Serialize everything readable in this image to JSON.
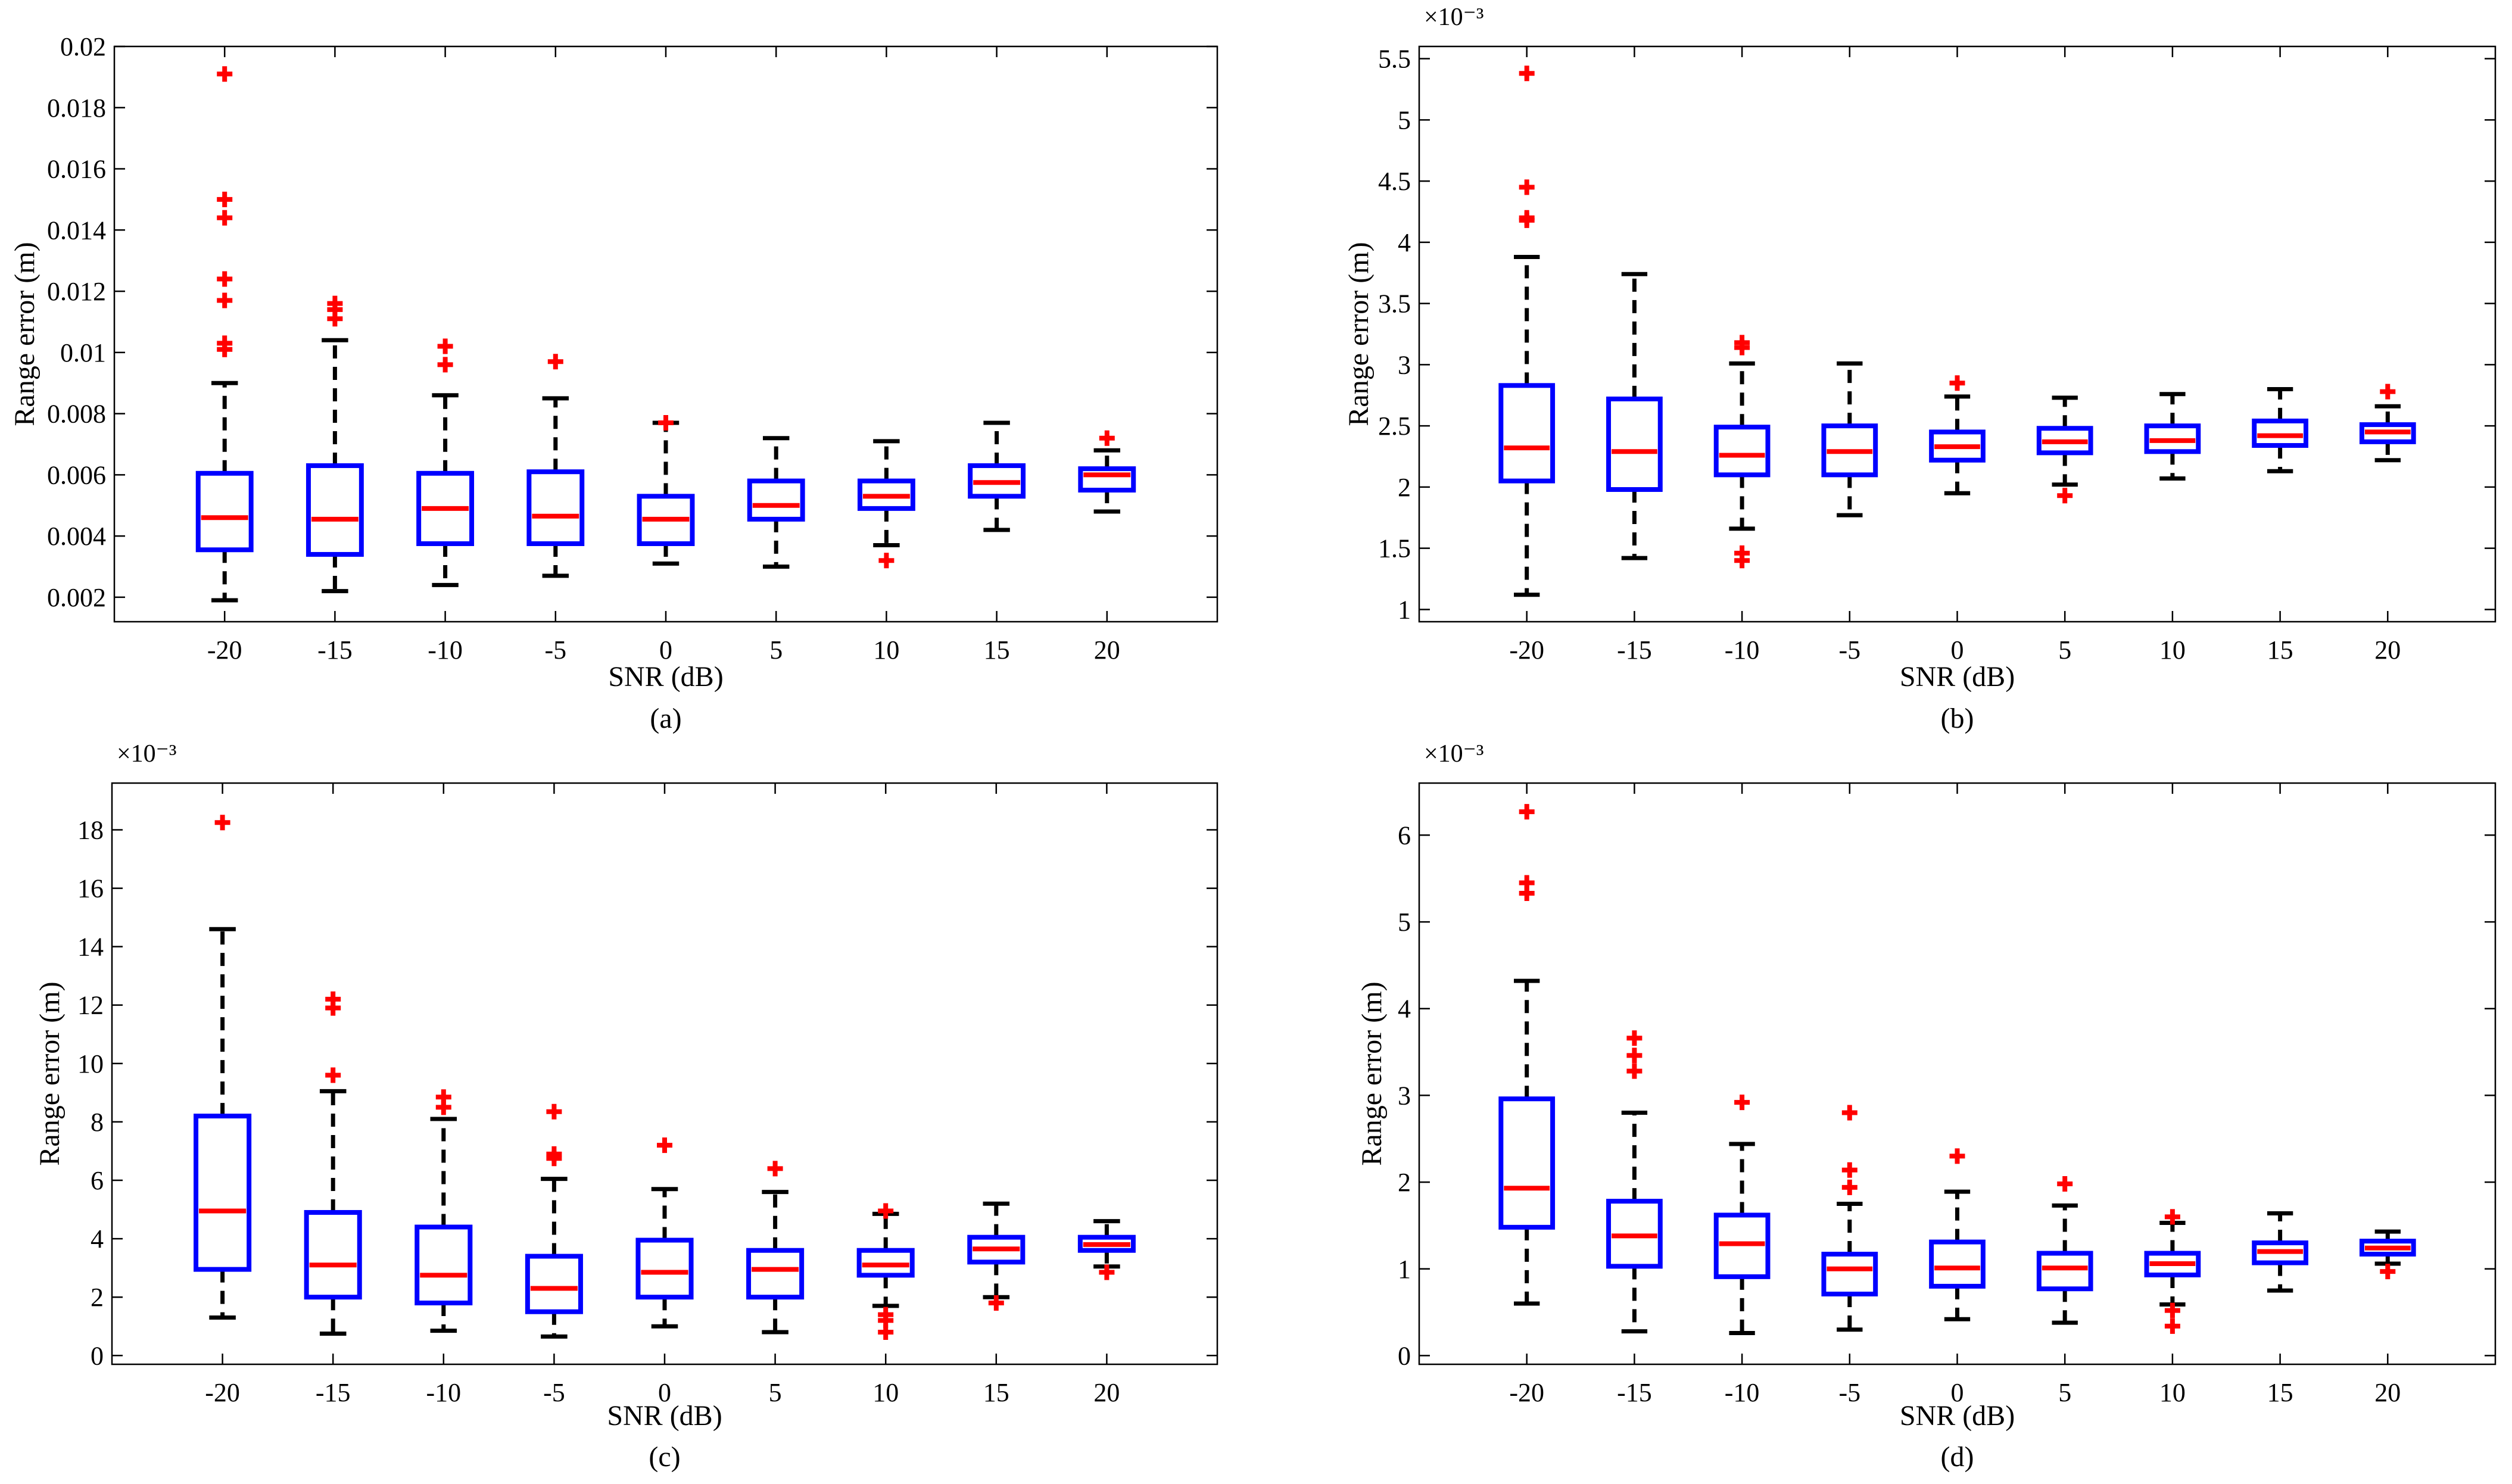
{
  "figure": {
    "colors": {
      "box": "#0000ff",
      "median": "#ff0000",
      "outlier": "#ff0000",
      "whisker": "#000000",
      "axis": "#000000"
    }
  },
  "chart_data": [
    {
      "type": "boxplot",
      "panel": "(a)",
      "xlabel": "SNR (dB)",
      "ylabel": "Range error (m)",
      "exponent": "",
      "categories": [
        "-20",
        "-15",
        "-10",
        "-5",
        "0",
        "5",
        "10",
        "15",
        "20"
      ],
      "ylim": [
        0.0012,
        0.02
      ],
      "yticks": [
        0.002,
        0.004,
        0.006,
        0.008,
        0.01,
        0.012,
        0.014,
        0.016,
        0.018,
        0.02
      ],
      "ytick_labels": [
        "0.002",
        "0.004",
        "0.006",
        "0.008",
        "0.01",
        "0.012",
        "0.014",
        "0.016",
        "0.018",
        "0.02"
      ],
      "boxes": [
        {
          "whisker_low": 0.0019,
          "q1": 0.00355,
          "median": 0.0046,
          "q3": 0.00605,
          "whisker_high": 0.009,
          "outliers": [
            0.0191,
            0.015,
            0.0144,
            0.0124,
            0.0117,
            0.0103,
            0.0101
          ]
        },
        {
          "whisker_low": 0.0022,
          "q1": 0.0034,
          "median": 0.00455,
          "q3": 0.0063,
          "whisker_high": 0.0104,
          "outliers": [
            0.0116,
            0.0114,
            0.0111
          ]
        },
        {
          "whisker_low": 0.0024,
          "q1": 0.00375,
          "median": 0.0049,
          "q3": 0.00605,
          "whisker_high": 0.0086,
          "outliers": [
            0.0102,
            0.0096
          ]
        },
        {
          "whisker_low": 0.0027,
          "q1": 0.00375,
          "median": 0.00465,
          "q3": 0.0061,
          "whisker_high": 0.0085,
          "outliers": [
            0.0097
          ]
        },
        {
          "whisker_low": 0.0031,
          "q1": 0.00375,
          "median": 0.00455,
          "q3": 0.0053,
          "whisker_high": 0.0077,
          "outliers": [
            0.0077
          ]
        },
        {
          "whisker_low": 0.003,
          "q1": 0.00455,
          "median": 0.005,
          "q3": 0.0058,
          "whisker_high": 0.0072,
          "outliers": []
        },
        {
          "whisker_low": 0.0037,
          "q1": 0.0049,
          "median": 0.0053,
          "q3": 0.0058,
          "whisker_high": 0.0071,
          "outliers": [
            0.0032
          ]
        },
        {
          "whisker_low": 0.0042,
          "q1": 0.0053,
          "median": 0.00575,
          "q3": 0.0063,
          "whisker_high": 0.0077,
          "outliers": []
        },
        {
          "whisker_low": 0.0048,
          "q1": 0.0055,
          "median": 0.006,
          "q3": 0.0062,
          "whisker_high": 0.0068,
          "outliers": [
            0.0072
          ]
        }
      ]
    },
    {
      "type": "boxplot",
      "panel": "(b)",
      "xlabel": "SNR (dB)",
      "ylabel": "Range error (m)",
      "exponent": "×10⁻³",
      "categories": [
        "-20",
        "-15",
        "-10",
        "-5",
        "0",
        "5",
        "10",
        "15",
        "20"
      ],
      "ylim": [
        0.9,
        5.6
      ],
      "yticks": [
        1,
        1.5,
        2,
        2.5,
        3,
        3.5,
        4,
        4.5,
        5,
        5.5
      ],
      "ytick_labels": [
        "1",
        "1.5",
        "2",
        "2.5",
        "3",
        "3.5",
        "4",
        "4.5",
        "5",
        "5.5"
      ],
      "boxes": [
        {
          "whisker_low": 1.12,
          "q1": 2.05,
          "median": 2.32,
          "q3": 2.83,
          "whisker_high": 3.88,
          "outliers": [
            5.38,
            4.45,
            4.2,
            4.18
          ]
        },
        {
          "whisker_low": 1.42,
          "q1": 1.98,
          "median": 2.29,
          "q3": 2.72,
          "whisker_high": 3.74,
          "outliers": []
        },
        {
          "whisker_low": 1.66,
          "q1": 2.1,
          "median": 2.26,
          "q3": 2.49,
          "whisker_high": 3.01,
          "outliers": [
            3.18,
            3.14,
            1.46,
            1.4
          ]
        },
        {
          "whisker_low": 1.77,
          "q1": 2.1,
          "median": 2.29,
          "q3": 2.5,
          "whisker_high": 3.01,
          "outliers": []
        },
        {
          "whisker_low": 1.95,
          "q1": 2.22,
          "median": 2.33,
          "q3": 2.45,
          "whisker_high": 2.74,
          "outliers": [
            2.85
          ]
        },
        {
          "whisker_low": 2.02,
          "q1": 2.28,
          "median": 2.37,
          "q3": 2.48,
          "whisker_high": 2.73,
          "outliers": [
            1.93
          ]
        },
        {
          "whisker_low": 2.07,
          "q1": 2.29,
          "median": 2.38,
          "q3": 2.5,
          "whisker_high": 2.76,
          "outliers": []
        },
        {
          "whisker_low": 2.13,
          "q1": 2.34,
          "median": 2.42,
          "q3": 2.54,
          "whisker_high": 2.8,
          "outliers": []
        },
        {
          "whisker_low": 2.22,
          "q1": 2.37,
          "median": 2.45,
          "q3": 2.51,
          "whisker_high": 2.66,
          "outliers": [
            2.78
          ]
        }
      ]
    },
    {
      "type": "boxplot",
      "panel": "(c)",
      "xlabel": "SNR (dB)",
      "ylabel": "Range error (m)",
      "exponent": "×10⁻³",
      "categories": [
        "-20",
        "-15",
        "-10",
        "-5",
        "0",
        "5",
        "10",
        "15",
        "20"
      ],
      "ylim": [
        -0.3,
        19.6
      ],
      "yticks": [
        0,
        2,
        4,
        6,
        8,
        10,
        12,
        14,
        16,
        18
      ],
      "ytick_labels": [
        "0",
        "2",
        "4",
        "6",
        "8",
        "10",
        "12",
        "14",
        "16",
        "18"
      ],
      "boxes": [
        {
          "whisker_low": 1.3,
          "q1": 2.95,
          "median": 4.95,
          "q3": 8.2,
          "whisker_high": 14.6,
          "outliers": [
            18.25
          ]
        },
        {
          "whisker_low": 0.75,
          "q1": 2.0,
          "median": 3.1,
          "q3": 4.9,
          "whisker_high": 9.05,
          "outliers": [
            12.2,
            11.9,
            9.6
          ]
        },
        {
          "whisker_low": 0.85,
          "q1": 1.8,
          "median": 2.75,
          "q3": 4.4,
          "whisker_high": 8.1,
          "outliers": [
            8.85,
            8.5
          ]
        },
        {
          "whisker_low": 0.65,
          "q1": 1.5,
          "median": 2.3,
          "q3": 3.4,
          "whisker_high": 6.05,
          "outliers": [
            8.35,
            6.9,
            6.75
          ]
        },
        {
          "whisker_low": 1.0,
          "q1": 2.0,
          "median": 2.85,
          "q3": 3.95,
          "whisker_high": 5.7,
          "outliers": [
            7.2
          ]
        },
        {
          "whisker_low": 0.8,
          "q1": 2.0,
          "median": 2.95,
          "q3": 3.6,
          "whisker_high": 5.6,
          "outliers": [
            6.4
          ]
        },
        {
          "whisker_low": 1.7,
          "q1": 2.75,
          "median": 3.1,
          "q3": 3.6,
          "whisker_high": 4.85,
          "outliers": [
            4.95,
            1.4,
            1.2,
            0.8
          ]
        },
        {
          "whisker_low": 2.0,
          "q1": 3.2,
          "median": 3.65,
          "q3": 4.05,
          "whisker_high": 5.2,
          "outliers": [
            1.8
          ]
        },
        {
          "whisker_low": 3.05,
          "q1": 3.6,
          "median": 3.8,
          "q3": 4.05,
          "whisker_high": 4.6,
          "outliers": [
            2.85
          ]
        }
      ]
    },
    {
      "type": "boxplot",
      "panel": "(d)",
      "xlabel": "SNR (dB)",
      "ylabel": "Range error (m)",
      "exponent": "×10⁻³",
      "categories": [
        "-20",
        "-15",
        "-10",
        "-5",
        "0",
        "5",
        "10",
        "15",
        "20"
      ],
      "ylim": [
        -0.1,
        6.6
      ],
      "yticks": [
        0,
        1,
        2,
        3,
        4,
        5,
        6
      ],
      "ytick_labels": [
        "0",
        "1",
        "2",
        "3",
        "4",
        "5",
        "6"
      ],
      "boxes": [
        {
          "whisker_low": 0.6,
          "q1": 1.48,
          "median": 1.93,
          "q3": 2.96,
          "whisker_high": 4.32,
          "outliers": [
            6.27,
            5.45,
            5.33
          ]
        },
        {
          "whisker_low": 0.28,
          "q1": 1.03,
          "median": 1.38,
          "q3": 1.78,
          "whisker_high": 2.8,
          "outliers": [
            3.66,
            3.46,
            3.28
          ]
        },
        {
          "whisker_low": 0.26,
          "q1": 0.91,
          "median": 1.29,
          "q3": 1.62,
          "whisker_high": 2.44,
          "outliers": [
            2.92
          ]
        },
        {
          "whisker_low": 0.3,
          "q1": 0.71,
          "median": 1.0,
          "q3": 1.17,
          "whisker_high": 1.75,
          "outliers": [
            2.8,
            2.14,
            1.94
          ]
        },
        {
          "whisker_low": 0.42,
          "q1": 0.8,
          "median": 1.01,
          "q3": 1.31,
          "whisker_high": 1.89,
          "outliers": [
            2.3
          ]
        },
        {
          "whisker_low": 0.38,
          "q1": 0.77,
          "median": 1.01,
          "q3": 1.18,
          "whisker_high": 1.73,
          "outliers": [
            1.98
          ]
        },
        {
          "whisker_low": 0.59,
          "q1": 0.93,
          "median": 1.06,
          "q3": 1.18,
          "whisker_high": 1.53,
          "outliers": [
            1.6,
            0.52,
            0.34
          ]
        },
        {
          "whisker_low": 0.75,
          "q1": 1.07,
          "median": 1.2,
          "q3": 1.3,
          "whisker_high": 1.64,
          "outliers": []
        },
        {
          "whisker_low": 1.06,
          "q1": 1.17,
          "median": 1.24,
          "q3": 1.32,
          "whisker_high": 1.43,
          "outliers": [
            0.97
          ]
        }
      ]
    }
  ]
}
